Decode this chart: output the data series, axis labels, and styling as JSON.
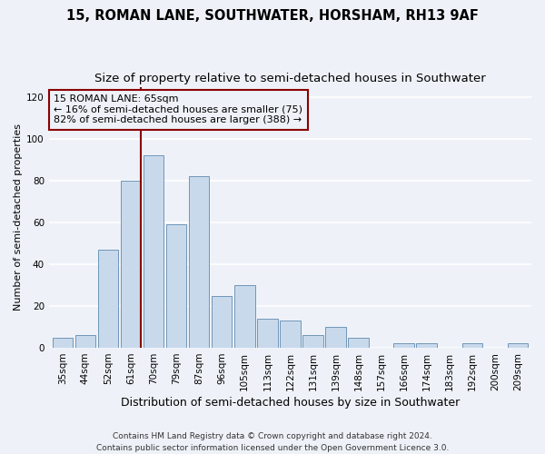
{
  "title1": "15, ROMAN LANE, SOUTHWATER, HORSHAM, RH13 9AF",
  "title2": "Size of property relative to semi-detached houses in Southwater",
  "xlabel": "Distribution of semi-detached houses by size in Southwater",
  "ylabel": "Number of semi-detached properties",
  "categories": [
    "35sqm",
    "44sqm",
    "52sqm",
    "61sqm",
    "70sqm",
    "79sqm",
    "87sqm",
    "96sqm",
    "105sqm",
    "113sqm",
    "122sqm",
    "131sqm",
    "139sqm",
    "148sqm",
    "157sqm",
    "166sqm",
    "174sqm",
    "183sqm",
    "192sqm",
    "200sqm",
    "209sqm"
  ],
  "values": [
    5,
    6,
    47,
    80,
    92,
    59,
    82,
    25,
    30,
    14,
    13,
    6,
    10,
    5,
    0,
    2,
    2,
    0,
    2,
    0,
    2
  ],
  "bar_color": "#c9d9ec",
  "bar_edge_color": "#7096b8",
  "vline_color": "#8b0000",
  "annotation_line1": "15 ROMAN LANE: 65sqm",
  "annotation_line2": "← 16% of semi-detached houses are smaller (75)",
  "annotation_line3": "82% of semi-detached houses are larger (388) →",
  "annotation_box_color": "#8b0000",
  "ylim": [
    0,
    125
  ],
  "yticks": [
    0,
    20,
    40,
    60,
    80,
    100,
    120
  ],
  "footer_line1": "Contains HM Land Registry data © Crown copyright and database right 2024.",
  "footer_line2": "Contains public sector information licensed under the Open Government Licence 3.0.",
  "bg_color": "#eef2f8",
  "grid_color": "#ffffff",
  "title1_fontsize": 10.5,
  "title2_fontsize": 9.5,
  "tick_fontsize": 7.5,
  "ylabel_fontsize": 8,
  "xlabel_fontsize": 9
}
